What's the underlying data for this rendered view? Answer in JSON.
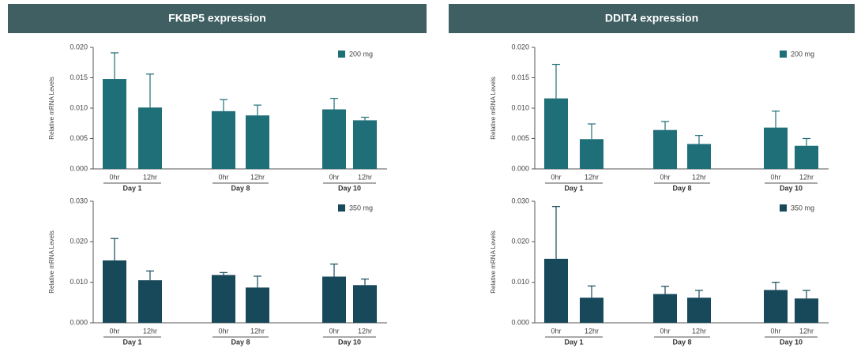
{
  "headers": [
    "FKBP5 expression",
    "DDIT4 expression"
  ],
  "chart_data": [
    {
      "type": "bar",
      "ylabel": "Relative mRNA Levels",
      "categories": [
        "0hr",
        "12hr",
        "0hr",
        "12hr",
        "0hr",
        "12hr"
      ],
      "groups": [
        "Day 1",
        "Day 8",
        "Day 10"
      ],
      "series": [
        {
          "name": "200 mg",
          "color": "#1f6f78",
          "values": [
            0.0148,
            0.0101,
            0.0095,
            0.0088,
            0.0098,
            0.008
          ],
          "errors": [
            0.0043,
            0.0055,
            0.0019,
            0.0017,
            0.0018,
            0.0005
          ]
        }
      ],
      "ylim": [
        0,
        0.02
      ],
      "yticks": [
        {
          "value": 0,
          "label": "0.000"
        },
        {
          "value": 0.005,
          "label": "0.005"
        },
        {
          "value": 0.01,
          "label": "0.010"
        },
        {
          "value": 0.015,
          "label": "0.015"
        },
        {
          "value": 0.02,
          "label": "0.020"
        }
      ],
      "legend": "upper right"
    },
    {
      "type": "bar",
      "ylabel": "Relative mRNA Levels",
      "categories": [
        "0hr",
        "12hr",
        "0hr",
        "12hr",
        "0hr",
        "12hr"
      ],
      "groups": [
        "Day 1",
        "Day 8",
        "Day 10"
      ],
      "series": [
        {
          "name": "200 mg",
          "color": "#1f6f78",
          "values": [
            0.0116,
            0.0049,
            0.0064,
            0.0041,
            0.0068,
            0.0038
          ],
          "errors": [
            0.0056,
            0.0025,
            0.0014,
            0.0014,
            0.0027,
            0.0012
          ]
        }
      ],
      "ylim": [
        0,
        0.02
      ],
      "yticks": [
        {
          "value": 0,
          "label": "0.000"
        },
        {
          "value": 0.005,
          "label": "0.005"
        },
        {
          "value": 0.01,
          "label": "0.010"
        },
        {
          "value": 0.015,
          "label": "0.015"
        },
        {
          "value": 0.02,
          "label": "0.020"
        }
      ],
      "legend": "upper right"
    },
    {
      "type": "bar",
      "ylabel": "Relative mRNA Levels",
      "categories": [
        "0hr",
        "12hr",
        "0hr",
        "12hr",
        "0hr",
        "12hr"
      ],
      "groups": [
        "Day 1",
        "Day 8",
        "Day 10"
      ],
      "series": [
        {
          "name": "350 mg",
          "color": "#17495a",
          "values": [
            0.0154,
            0.0105,
            0.0118,
            0.0087,
            0.0114,
            0.0093
          ],
          "errors": [
            0.0054,
            0.0023,
            0.0006,
            0.0028,
            0.0031,
            0.0015
          ]
        }
      ],
      "ylim": [
        0,
        0.03
      ],
      "yticks": [
        {
          "value": 0,
          "label": "0.000"
        },
        {
          "value": 0.01,
          "label": "0.010"
        },
        {
          "value": 0.02,
          "label": "0.020"
        },
        {
          "value": 0.03,
          "label": "0.030"
        }
      ],
      "legend": "upper right"
    },
    {
      "type": "bar",
      "ylabel": "Relative mRNA Levels",
      "categories": [
        "0hr",
        "12hr",
        "0hr",
        "12hr",
        "0hr",
        "12hr"
      ],
      "groups": [
        "Day 1",
        "Day 8",
        "Day 10"
      ],
      "series": [
        {
          "name": "350 mg",
          "color": "#17495a",
          "values": [
            0.0158,
            0.0062,
            0.0071,
            0.0062,
            0.0081,
            0.006
          ],
          "errors": [
            0.0129,
            0.0029,
            0.0019,
            0.0018,
            0.0019,
            0.002
          ]
        }
      ],
      "ylim": [
        0,
        0.03
      ],
      "yticks": [
        {
          "value": 0,
          "label": "0.000"
        },
        {
          "value": 0.01,
          "label": "0.010"
        },
        {
          "value": 0.02,
          "label": "0.020"
        },
        {
          "value": 0.03,
          "label": "0.030"
        }
      ],
      "legend": "upper right"
    }
  ]
}
